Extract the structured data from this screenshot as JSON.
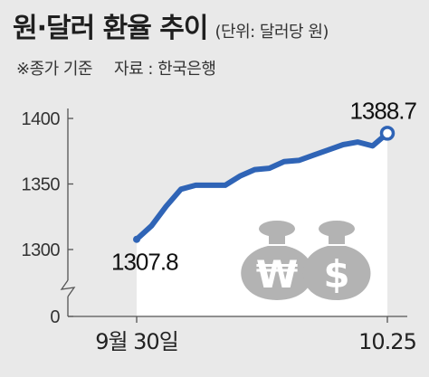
{
  "header": {
    "title": "원·달러 환율 추이",
    "unit": "(단위: 달러당 원)",
    "basis_note": "※종가 기준",
    "source_note": "자료 : 한국은행"
  },
  "chart_data": {
    "type": "line",
    "title": "원·달러 환율 추이",
    "unit": "달러당 원",
    "x_tick_labels": [
      "9월 30일",
      "10.25"
    ],
    "y_ticks": [
      0,
      1300,
      1350,
      1400
    ],
    "ylim": [
      1290,
      1400
    ],
    "y_axis_break": true,
    "grid": false,
    "series": [
      {
        "color": "#2f64b6",
        "values": [
          1307.8,
          1318,
          1333,
          1346,
          1349,
          1349,
          1349,
          1356,
          1361,
          1362,
          1367,
          1368,
          1372,
          1376,
          1380,
          1382,
          1379,
          1388.7
        ]
      }
    ],
    "annotations": [
      {
        "index": 0,
        "text": "1307.8"
      },
      {
        "index": 17,
        "text": "1388.7"
      }
    ],
    "colors": {
      "line": "#2f64b6",
      "area": "#ffffff",
      "background": "#e9e9e9",
      "icon": "#b3b3b3"
    },
    "icons": [
      "won-money-bag-icon",
      "dollar-money-bag-icon"
    ]
  }
}
